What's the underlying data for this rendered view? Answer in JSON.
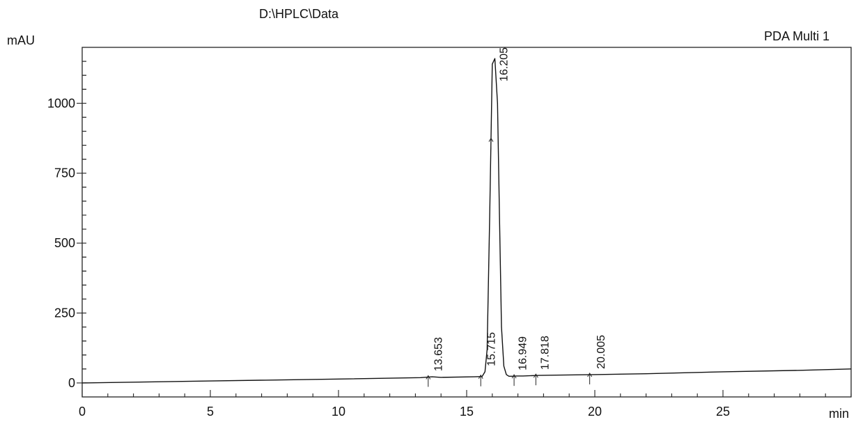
{
  "header": {
    "path": "D:\\HPLC\\Data",
    "channel": "PDA Multi 1"
  },
  "chart_data": {
    "type": "line",
    "title": "",
    "xlabel": "min",
    "ylabel": "mAU",
    "xlim": [
      0,
      30
    ],
    "ylim": [
      -50,
      1200
    ],
    "x_ticks": [
      0,
      5,
      10,
      15,
      20,
      25
    ],
    "y_ticks": [
      0,
      250,
      500,
      750,
      1000
    ],
    "grid": false,
    "series": [
      {
        "x": [
          0,
          5,
          10,
          13.2,
          13.653,
          14,
          15.3,
          15.6,
          15.715,
          15.8,
          15.9,
          16.0,
          16.1,
          16.205,
          16.28,
          16.36,
          16.45,
          16.55,
          16.65,
          16.8,
          16.949,
          17.2,
          17.818,
          18.5,
          20.005,
          22,
          25,
          28,
          30
        ],
        "y": [
          0,
          7,
          14,
          19,
          22,
          20,
          22,
          23,
          40,
          120,
          600,
          1140,
          1160,
          1000,
          600,
          200,
          60,
          30,
          24,
          24,
          25,
          25,
          27,
          28,
          30,
          33,
          40,
          45,
          50
        ]
      }
    ],
    "peaks": [
      {
        "rt": "13.653",
        "x": 13.653
      },
      {
        "rt": "15.715",
        "x": 15.715
      },
      {
        "rt": "16.205",
        "x": 16.205
      },
      {
        "rt": "16.949",
        "x": 16.949
      },
      {
        "rt": "17.818",
        "x": 17.818
      },
      {
        "rt": "20.005",
        "x": 20.005
      }
    ],
    "integration_marks": [
      13.5,
      15.55,
      15.95,
      16.85,
      17.7,
      19.8
    ]
  }
}
